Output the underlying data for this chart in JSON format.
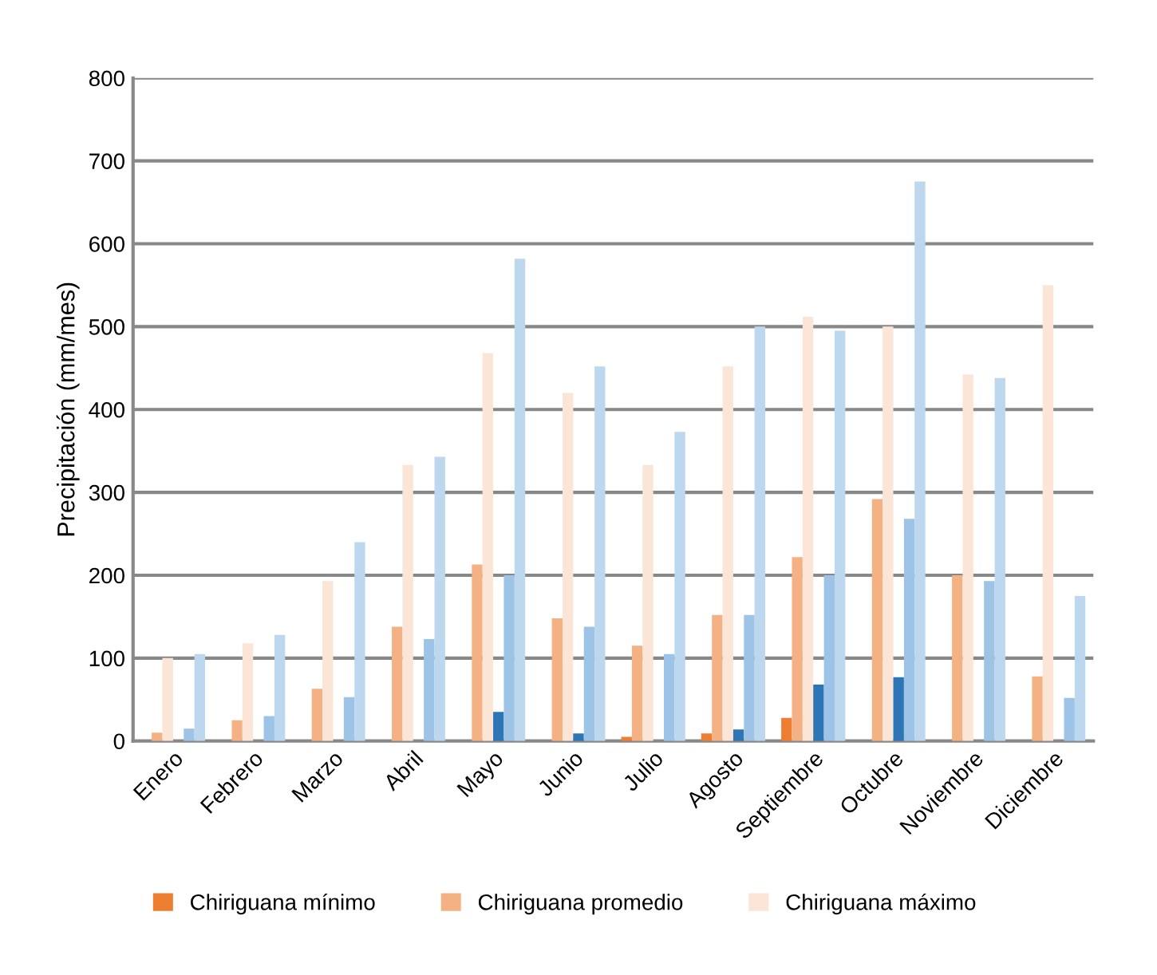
{
  "chart_data": {
    "type": "bar",
    "ylabel": "Precipitación (mm/mes)",
    "categories": [
      "Enero",
      "Febrero",
      "Marzo",
      "Abril",
      "Mayo",
      "Junio",
      "Julio",
      "Agosto",
      "Septiembre",
      "Octubre",
      "Noviembre",
      "Diciembre"
    ],
    "series": [
      {
        "name": "Chiriguana mínimo",
        "color": "#ed7d31",
        "values": [
          0,
          0,
          0,
          0,
          0,
          0,
          5,
          9,
          28,
          0,
          0,
          0
        ]
      },
      {
        "name": "Chiriguana promedio",
        "color": "#f4b183",
        "values": [
          10,
          25,
          63,
          138,
          213,
          148,
          115,
          152,
          222,
          292,
          200,
          78
        ]
      },
      {
        "name": "Chiriguana máximo",
        "color": "#fbe5d6",
        "values": [
          100,
          118,
          193,
          333,
          468,
          420,
          333,
          452,
          512,
          500,
          442,
          550
        ]
      },
      {
        "color": "#2e75b6",
        "values": [
          0,
          0,
          0,
          0,
          35,
          9,
          0,
          14,
          68,
          77,
          0,
          0
        ]
      },
      {
        "color": "#9dc3e6",
        "values": [
          15,
          30,
          53,
          123,
          200,
          138,
          105,
          152,
          200,
          268,
          193,
          52
        ]
      },
      {
        "color": "#bdd7ee",
        "values": [
          105,
          128,
          240,
          343,
          582,
          452,
          373,
          500,
          495,
          675,
          438,
          175
        ]
      }
    ],
    "ylim": [
      0,
      800
    ],
    "yticks": [
      0,
      100,
      200,
      300,
      400,
      500,
      600,
      700,
      800
    ],
    "grid": "y",
    "legend": "bottom"
  }
}
